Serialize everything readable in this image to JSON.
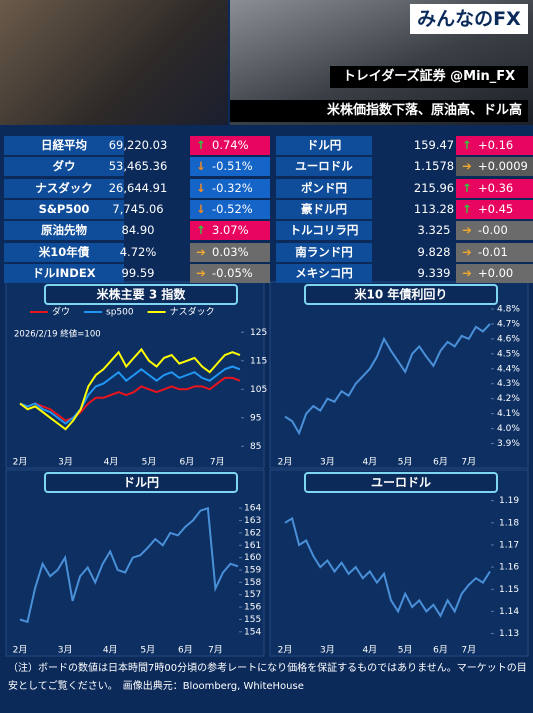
{
  "header": {
    "brand": "みんなのFX",
    "account": "トレイダーズ証券 @Min_FX",
    "headline": "米株価指数下落、原油高、ドル高"
  },
  "market_table": {
    "left": [
      {
        "name": "日経平均",
        "value": "69,220.03",
        "change": "0.74%",
        "trend": "up",
        "color": "#e8055f"
      },
      {
        "name": "ダウ",
        "value": "53,465.36",
        "change": "-0.51%",
        "trend": "down",
        "color": "#1565c8"
      },
      {
        "name": "ナスダック",
        "value": "26,644.91",
        "change": "-0.32%",
        "trend": "down",
        "color": "#1565c8"
      },
      {
        "name": "S&P500",
        "value": "7,745.06",
        "change": "-0.52%",
        "trend": "down",
        "color": "#1565c8"
      },
      {
        "name": "原油先物",
        "value": "84.90",
        "change": "3.07%",
        "trend": "up",
        "color": "#e8055f"
      },
      {
        "name": "米10年債",
        "value": "4.72%",
        "change": "0.03%",
        "trend": "flat",
        "color": "#6b6b6b"
      },
      {
        "name": "ドルINDEX",
        "value": "99.59",
        "change": "-0.05%",
        "trend": "flat",
        "color": "#6b6b6b"
      }
    ],
    "right": [
      {
        "name": "ドル円",
        "value": "159.47",
        "change": "+0.16",
        "trend": "up",
        "color": "#e8055f"
      },
      {
        "name": "ユーロドル",
        "value": "1.1578",
        "change": "+0.0009",
        "trend": "flat",
        "color": "#5a5a5a"
      },
      {
        "name": "ポンド円",
        "value": "215.96",
        "change": "+0.36",
        "trend": "up",
        "color": "#e8055f"
      },
      {
        "name": "豪ドル円",
        "value": "113.28",
        "change": "+0.45",
        "trend": "up",
        "color": "#e8055f"
      },
      {
        "name": "トルコリラ円",
        "value": "3.325",
        "change": "-0.00",
        "trend": "flat",
        "color": "#6b6b6b"
      },
      {
        "name": "南ランド円",
        "value": "9.828",
        "change": "-0.01",
        "trend": "flat",
        "color": "#6b6b6b"
      },
      {
        "name": "メキシコ円",
        "value": "9.339",
        "change": "+0.00",
        "trend": "flat",
        "color": "#6b6b6b"
      }
    ]
  },
  "chart_data": [
    {
      "type": "line",
      "title": "米株主要 3 指数",
      "note": "2026/2/19 終値=100",
      "categories": [
        "2月",
        null,
        null,
        null,
        null,
        null,
        "3月",
        null,
        null,
        null,
        null,
        null,
        "4月",
        null,
        null,
        null,
        null,
        "5月",
        null,
        null,
        null,
        null,
        "6月",
        null,
        null,
        null,
        "7月",
        null,
        null,
        null
      ],
      "series": [
        {
          "name": "ダウ",
          "color": "#e8141e",
          "values": [
            100,
            99,
            100,
            99,
            98,
            96,
            94,
            95,
            97,
            100,
            102,
            102,
            103,
            104,
            103,
            104,
            106,
            105,
            104,
            105,
            106,
            105,
            105,
            106,
            106,
            105,
            107,
            109,
            109,
            108
          ]
        },
        {
          "name": "sp500",
          "color": "#2196f3",
          "values": [
            100,
            99,
            100,
            98,
            97,
            95,
            93,
            95,
            98,
            103,
            106,
            107,
            109,
            111,
            108,
            110,
            112,
            110,
            108,
            110,
            111,
            109,
            110,
            111,
            109,
            108,
            110,
            112,
            113,
            112
          ]
        },
        {
          "name": "ナスダック",
          "color": "#ffff00",
          "values": [
            100,
            98,
            99,
            97,
            95,
            93,
            91,
            94,
            98,
            106,
            110,
            112,
            115,
            118,
            113,
            116,
            119,
            115,
            113,
            116,
            117,
            114,
            115,
            116,
            113,
            111,
            114,
            117,
            118,
            117
          ]
        }
      ],
      "ylim": [
        83,
        130
      ],
      "yticks": [
        85,
        95,
        105,
        115,
        125
      ]
    },
    {
      "type": "line",
      "title": "米10 年債利回り",
      "color": "#4a90d9",
      "categories": [
        "2月",
        null,
        null,
        null,
        null,
        null,
        "3月",
        null,
        null,
        null,
        null,
        null,
        "4月",
        null,
        null,
        null,
        null,
        "5月",
        null,
        null,
        null,
        null,
        "6月",
        null,
        null,
        null,
        "7月",
        null,
        null,
        null
      ],
      "values": [
        4.08,
        4.05,
        3.97,
        4.1,
        4.15,
        4.12,
        4.2,
        4.18,
        4.25,
        4.22,
        4.3,
        4.35,
        4.4,
        4.48,
        4.6,
        4.52,
        4.45,
        4.38,
        4.5,
        4.55,
        4.48,
        4.42,
        4.52,
        4.58,
        4.55,
        4.62,
        4.6,
        4.68,
        4.65,
        4.7
      ],
      "ylim": [
        3.87,
        4.82
      ],
      "yticks": [
        {
          "value": 3.9,
          "label": "3.9%"
        },
        {
          "value": 4.0,
          "label": "4.0%"
        },
        {
          "value": 4.1,
          "label": "4.1%"
        },
        {
          "value": 4.2,
          "label": "4.2%"
        },
        {
          "value": 4.3,
          "label": "4.3%"
        },
        {
          "value": 4.4,
          "label": "4.4%"
        },
        {
          "value": 4.5,
          "label": "4.5%"
        },
        {
          "value": 4.6,
          "label": "4.6%"
        },
        {
          "value": 4.7,
          "label": "4.7%"
        },
        {
          "value": 4.8,
          "label": "4.8%"
        }
      ]
    },
    {
      "type": "line",
      "title": "ドル円",
      "color": "#4a90d9",
      "categories": [
        "2月",
        null,
        null,
        null,
        null,
        null,
        "3月",
        null,
        null,
        null,
        null,
        null,
        "4月",
        null,
        null,
        null,
        null,
        "5月",
        null,
        null,
        null,
        null,
        "6月",
        null,
        null,
        null,
        "7月",
        null,
        null,
        null
      ],
      "values": [
        155.0,
        154.8,
        157.5,
        159.5,
        158.5,
        159.0,
        160.0,
        156.5,
        158.5,
        159.2,
        158.0,
        159.5,
        160.5,
        159.0,
        158.8,
        160.0,
        160.2,
        160.8,
        161.5,
        161.0,
        162.0,
        161.8,
        162.5,
        163.0,
        163.8,
        164.0,
        157.5,
        158.8,
        159.5,
        159.3
      ],
      "ylim": [
        153.5,
        164.5
      ],
      "yticks": [
        154,
        155,
        156,
        157,
        158,
        159,
        160,
        161,
        162,
        163,
        164
      ]
    },
    {
      "type": "line",
      "title": "ユーロドル",
      "color": "#4a90d9",
      "categories": [
        "2月",
        null,
        null,
        null,
        null,
        null,
        "3月",
        null,
        null,
        null,
        null,
        null,
        "4月",
        null,
        null,
        null,
        null,
        "5月",
        null,
        null,
        null,
        null,
        "6月",
        null,
        null,
        null,
        "7月",
        null,
        null,
        null
      ],
      "values": [
        1.18,
        1.182,
        1.17,
        1.172,
        1.165,
        1.16,
        1.163,
        1.158,
        1.162,
        1.157,
        1.16,
        1.155,
        1.158,
        1.153,
        1.157,
        1.145,
        1.14,
        1.148,
        1.142,
        1.145,
        1.14,
        1.143,
        1.138,
        1.145,
        1.14,
        1.148,
        1.152,
        1.155,
        1.153,
        1.158
      ],
      "ylim": [
        1.128,
        1.193
      ],
      "yticks": [
        1.13,
        1.14,
        1.15,
        1.16,
        1.17,
        1.18,
        1.19
      ]
    }
  ],
  "footer": "（注）ボードの数値は日本時間7時00分頃の参考レートになり価格を保証するものではありません。マーケットの目安としてご覧ください。　画像出典元：Bloomberg, WhiteHouse"
}
